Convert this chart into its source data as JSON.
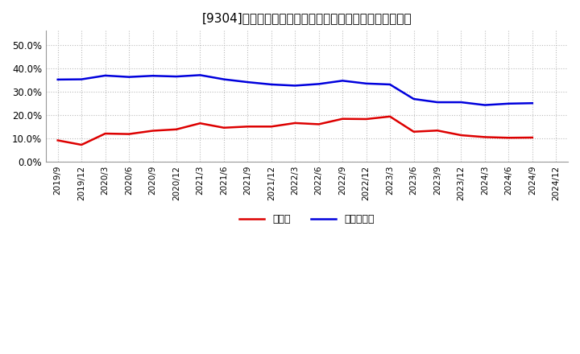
{
  "title": "[9304]　現頲金、有利子負債の総資産に対する比率の推移",
  "x_labels": [
    "2019/9",
    "2019/12",
    "2020/3",
    "2020/6",
    "2020/9",
    "2020/12",
    "2021/3",
    "2021/6",
    "2021/9",
    "2021/12",
    "2022/3",
    "2022/6",
    "2022/9",
    "2022/12",
    "2023/3",
    "2023/6",
    "2023/9",
    "2023/12",
    "2024/3",
    "2024/6",
    "2024/9",
    "2024/12"
  ],
  "cash": [
    0.091,
    0.072,
    0.12,
    0.118,
    0.132,
    0.138,
    0.164,
    0.145,
    0.15,
    0.15,
    0.165,
    0.16,
    0.183,
    0.182,
    0.193,
    0.128,
    0.133,
    0.113,
    0.105,
    0.102,
    0.103,
    null
  ],
  "debt": [
    0.351,
    0.352,
    0.368,
    0.362,
    0.367,
    0.364,
    0.37,
    0.352,
    0.34,
    0.33,
    0.325,
    0.332,
    0.346,
    0.334,
    0.33,
    0.268,
    0.254,
    0.254,
    0.242,
    0.248,
    0.25,
    null
  ],
  "cash_color": "#dd0000",
  "debt_color": "#0000dd",
  "bg_color": "#ffffff",
  "plot_bg_color": "#ffffff",
  "grid_color": "#bbbbbb",
  "title_fontsize": 11,
  "legend_cash": "現頲金",
  "legend_debt": "有利子負債",
  "ylim": [
    0.0,
    0.56
  ],
  "yticks": [
    0.0,
    0.1,
    0.2,
    0.3,
    0.4,
    0.5
  ]
}
